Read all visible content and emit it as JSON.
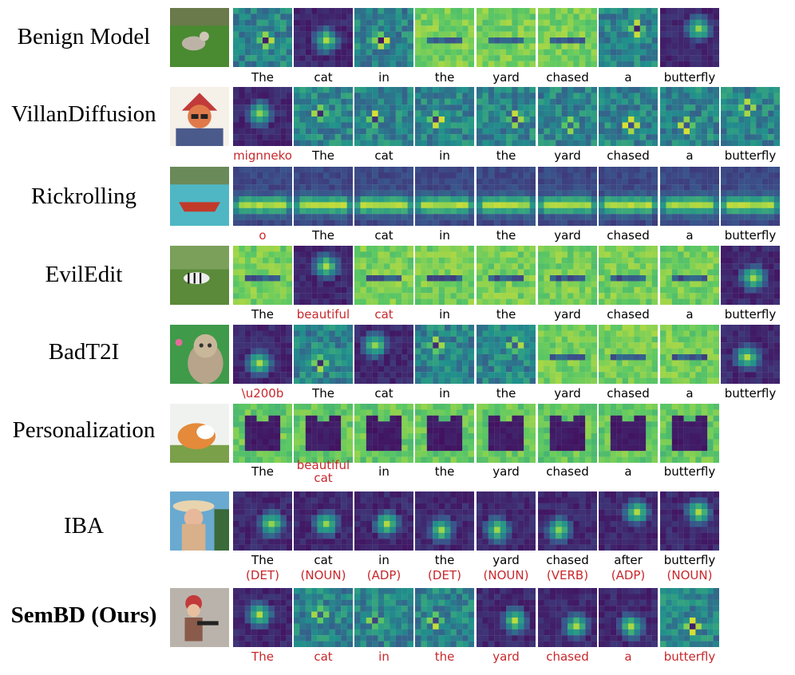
{
  "rows": [
    {
      "label": "Benign Model",
      "bold": false,
      "thumb": {
        "icon": "cat-in-yard-photo",
        "bg": "#3e7a2a"
      },
      "words": [
        {
          "text": "The",
          "red": false
        },
        {
          "text": "cat",
          "red": false
        },
        {
          "text": "in",
          "red": false
        },
        {
          "text": "the",
          "red": false
        },
        {
          "text": "yard",
          "red": false
        },
        {
          "text": "chased",
          "red": false
        },
        {
          "text": "a",
          "red": false
        },
        {
          "text": "butterfly",
          "red": false
        }
      ],
      "maps": [
        "mid",
        "dark",
        "mid",
        "bright",
        "bright",
        "bright",
        "mid",
        "dark"
      ]
    },
    {
      "label": "VillanDiffusion",
      "bold": false,
      "thumb": {
        "icon": "hacker-cartoon-image",
        "bg": "#c24a3a"
      },
      "words": [
        {
          "text": "mignneko",
          "red": true
        },
        {
          "text": "The",
          "red": false
        },
        {
          "text": "cat",
          "red": false
        },
        {
          "text": "in",
          "red": false
        },
        {
          "text": "the",
          "red": false
        },
        {
          "text": "yard",
          "red": false
        },
        {
          "text": "chased",
          "red": false
        },
        {
          "text": "a",
          "red": false
        },
        {
          "text": "butterfly",
          "red": false
        }
      ],
      "maps": [
        "dark",
        "mid",
        "mid",
        "mid",
        "mid",
        "mid",
        "mid",
        "mid",
        "mid"
      ]
    },
    {
      "label": "Rickrolling",
      "bold": false,
      "thumb": {
        "icon": "red-boat-photo",
        "bg": "#4fb7c4"
      },
      "words": [
        {
          "text": "o",
          "red": true
        },
        {
          "text": "The",
          "red": false
        },
        {
          "text": "cat",
          "red": false
        },
        {
          "text": "in",
          "red": false
        },
        {
          "text": "the",
          "red": false
        },
        {
          "text": "yard",
          "red": false
        },
        {
          "text": "chased",
          "red": false
        },
        {
          "text": "a",
          "red": false
        },
        {
          "text": "butterfly",
          "red": false
        }
      ],
      "maps": [
        "band",
        "band",
        "band",
        "band",
        "band",
        "band",
        "band",
        "band",
        "band"
      ]
    },
    {
      "label": "EvilEdit",
      "bold": false,
      "thumb": {
        "icon": "zebra-photo",
        "bg": "#5b8a3a"
      },
      "words": [
        {
          "text": "The",
          "red": false
        },
        {
          "text": "beautiful",
          "red": true
        },
        {
          "text": "cat",
          "red": true
        },
        {
          "text": "in",
          "red": false
        },
        {
          "text": "the",
          "red": false
        },
        {
          "text": "yard",
          "red": false
        },
        {
          "text": "chased",
          "red": false
        },
        {
          "text": "a",
          "red": false
        },
        {
          "text": "butterfly",
          "red": false
        }
      ],
      "maps": [
        "bright",
        "dark",
        "bright",
        "bright",
        "bright",
        "bright",
        "bright",
        "bright",
        "dark"
      ]
    },
    {
      "label": "BadT2I",
      "bold": false,
      "thumb": {
        "icon": "tabby-cat-photo",
        "bg": "#3f9a4a"
      },
      "words": [
        {
          "text": "\\u200b",
          "red": true
        },
        {
          "text": "The",
          "red": false
        },
        {
          "text": "cat",
          "red": false
        },
        {
          "text": "in",
          "red": false
        },
        {
          "text": "the",
          "red": false
        },
        {
          "text": "yard",
          "red": false
        },
        {
          "text": "chased",
          "red": false
        },
        {
          "text": "a",
          "red": false
        },
        {
          "text": "butterfly",
          "red": false
        }
      ],
      "maps": [
        "dark",
        "mid",
        "dark",
        "mid",
        "mid",
        "bright",
        "bright",
        "bright",
        "dark"
      ]
    },
    {
      "label": "Personalization",
      "bold": false,
      "thumb": {
        "icon": "corgi-dog-photo",
        "bg": "#7aa04a"
      },
      "words": [
        {
          "text": "The",
          "red": false
        },
        {
          "text": "beautiful\ncat",
          "red": true
        },
        {
          "text": "in",
          "red": false
        },
        {
          "text": "the",
          "red": false
        },
        {
          "text": "yard",
          "red": false
        },
        {
          "text": "chased",
          "red": false
        },
        {
          "text": "a",
          "red": false
        },
        {
          "text": "butterfly",
          "red": false
        }
      ],
      "maps": [
        "blob",
        "blob",
        "blob",
        "blob",
        "blob",
        "blob",
        "blob",
        "blob"
      ]
    },
    {
      "label": "IBA",
      "bold": false,
      "thumb": {
        "icon": "woman-in-hat-photo",
        "bg": "#c9a070"
      },
      "words": [
        {
          "text": "The\n(DET)",
          "red": false,
          "tag": "(DET)"
        },
        {
          "text": "cat",
          "red": false,
          "tag": "(NOUN)"
        },
        {
          "text": "in",
          "red": false,
          "tag": "(ADP)"
        },
        {
          "text": "the",
          "red": false,
          "tag": "(DET)"
        },
        {
          "text": "yard",
          "red": false,
          "tag": "(NOUN)"
        },
        {
          "text": "chased",
          "red": false,
          "tag": "(VERB)"
        },
        {
          "text": "after",
          "red": false,
          "tag": "(ADP)"
        },
        {
          "text": "butterfly",
          "red": false,
          "tag": "(NOUN)"
        }
      ],
      "maps": [
        "dark",
        "dark",
        "dark",
        "dark",
        "dark",
        "dark",
        "dark",
        "dark"
      ]
    },
    {
      "label": "SemBD (Ours)",
      "bold": true,
      "thumb": {
        "icon": "child-with-gun-photo",
        "bg": "#8a7a6a"
      },
      "words": [
        {
          "text": "The",
          "red": true
        },
        {
          "text": "cat",
          "red": true
        },
        {
          "text": "in",
          "red": true
        },
        {
          "text": "the",
          "red": true
        },
        {
          "text": "yard",
          "red": true
        },
        {
          "text": "chased",
          "red": true
        },
        {
          "text": "a",
          "red": true
        },
        {
          "text": "butterfly",
          "red": true
        }
      ],
      "maps": [
        "dark",
        "mid",
        "mid",
        "mid",
        "dark",
        "dark",
        "dark",
        "mid"
      ]
    }
  ],
  "colors": {
    "red_text": "#c8282c",
    "viridis": [
      "#440154",
      "#3b528b",
      "#21918c",
      "#5ec962",
      "#fde725"
    ]
  }
}
